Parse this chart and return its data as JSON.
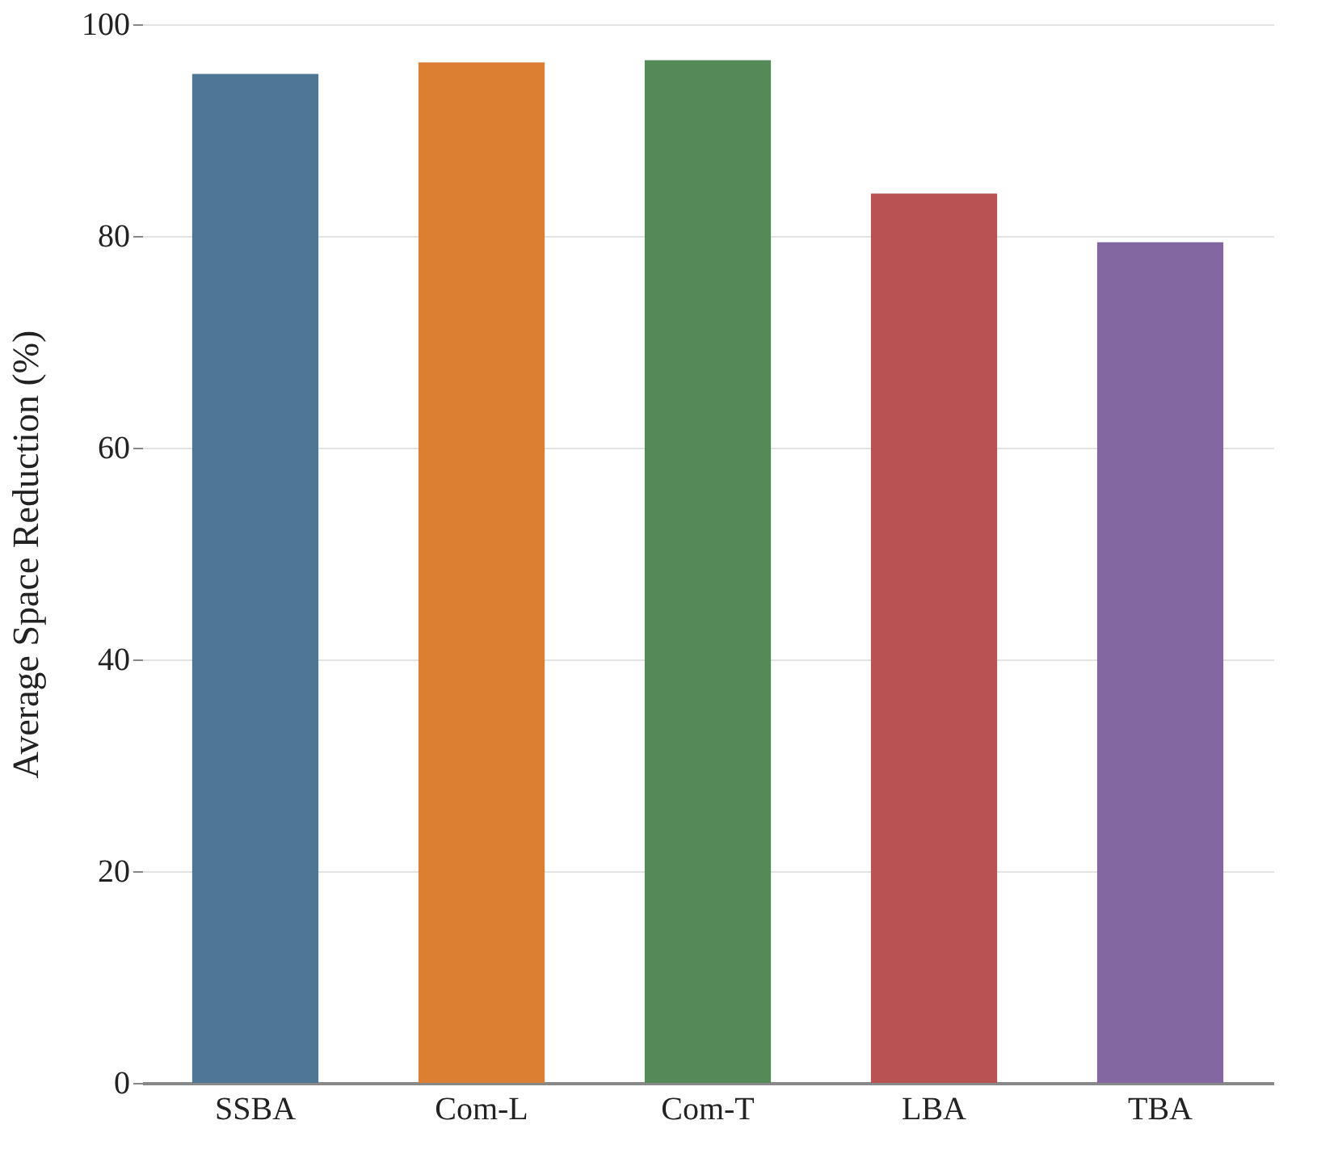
{
  "chart_data": {
    "type": "bar",
    "ylabel": "Average Space Reduction (%)",
    "categories": [
      "SSBA",
      "Com-L",
      "Com-T",
      "LBA",
      "TBA"
    ],
    "values": [
      95.3,
      96.4,
      96.6,
      84.0,
      79.4
    ],
    "colors": [
      "#4e7795",
      "#dc7f32",
      "#548a57",
      "#b95353",
      "#8267a0"
    ],
    "ylim": [
      0,
      100
    ],
    "yticks": [
      0,
      20,
      40,
      60,
      80,
      100
    ],
    "grid": "y"
  }
}
